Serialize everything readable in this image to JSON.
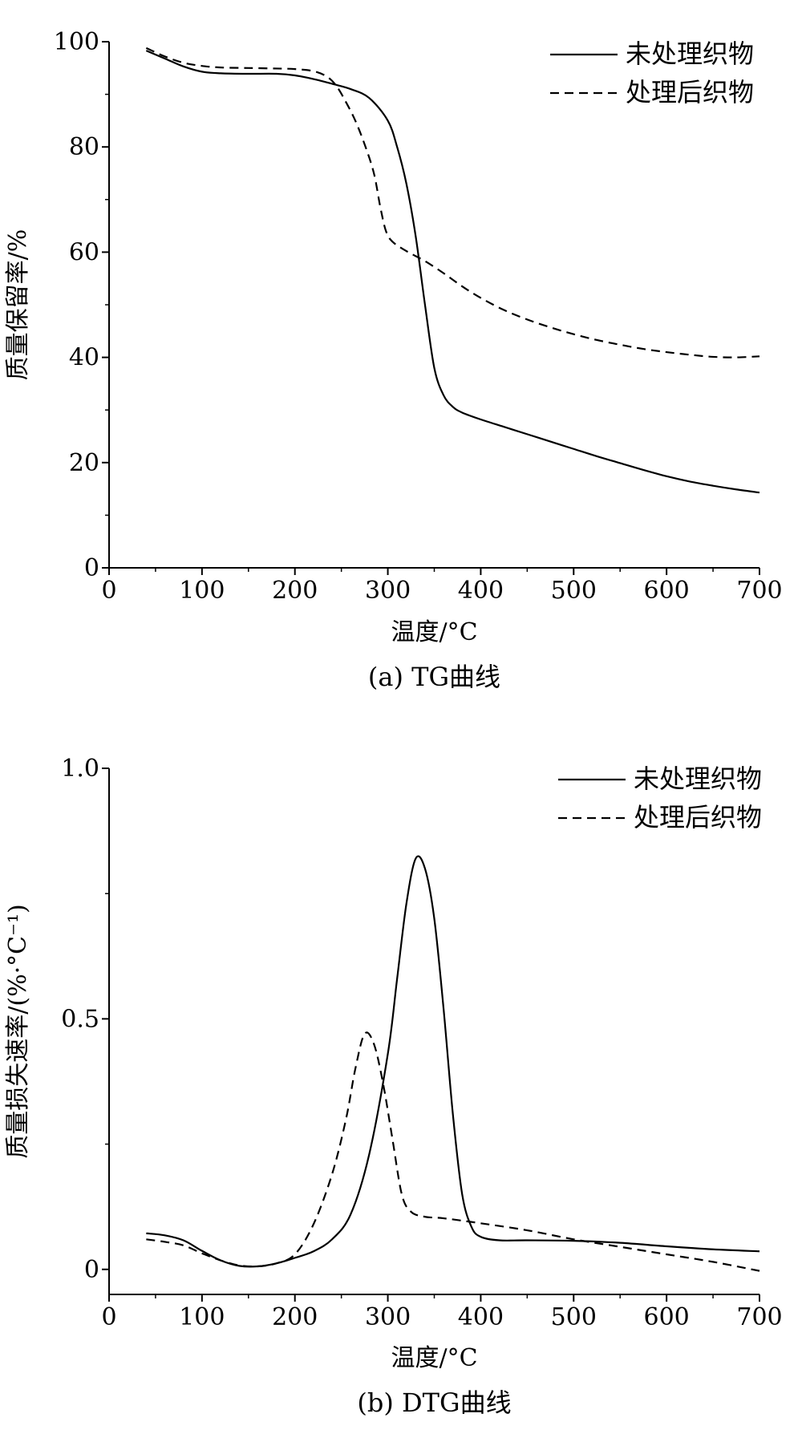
{
  "chart_data": [
    {
      "id": "tg",
      "type": "line",
      "caption": "(a) TG曲线",
      "xlabel": "温度/°C",
      "ylabel": "质量保留率/%",
      "xlim": [
        0,
        700
      ],
      "ylim": [
        0,
        100
      ],
      "xticks": [
        "0",
        "100",
        "200",
        "300",
        "400",
        "500",
        "600",
        "700"
      ],
      "yticks": [
        "0",
        "20",
        "40",
        "60",
        "80",
        "100"
      ],
      "legend_position": "top-right",
      "series": [
        {
          "name": "未处理织物",
          "style": "solid",
          "points": [
            [
              40,
              98.3
            ],
            [
              60,
              96.8
            ],
            [
              80,
              95.3
            ],
            [
              100,
              94.3
            ],
            [
              120,
              94.0
            ],
            [
              150,
              93.9
            ],
            [
              180,
              93.9
            ],
            [
              200,
              93.6
            ],
            [
              220,
              92.9
            ],
            [
              240,
              92.0
            ],
            [
              260,
              91.0
            ],
            [
              280,
              89.3
            ],
            [
              300,
              85.0
            ],
            [
              310,
              80.0
            ],
            [
              320,
              73.0
            ],
            [
              330,
              63.0
            ],
            [
              340,
              50.0
            ],
            [
              350,
              38.0
            ],
            [
              360,
              32.8
            ],
            [
              370,
              30.6
            ],
            [
              380,
              29.5
            ],
            [
              400,
              28.2
            ],
            [
              425,
              26.8
            ],
            [
              450,
              25.4
            ],
            [
              475,
              24.0
            ],
            [
              500,
              22.6
            ],
            [
              525,
              21.2
            ],
            [
              550,
              19.9
            ],
            [
              575,
              18.6
            ],
            [
              600,
              17.4
            ],
            [
              625,
              16.4
            ],
            [
              650,
              15.6
            ],
            [
              675,
              14.9
            ],
            [
              700,
              14.3
            ]
          ]
        },
        {
          "name": "处理后织物",
          "style": "dashed",
          "points": [
            [
              40,
              98.8
            ],
            [
              60,
              97.2
            ],
            [
              80,
              96.0
            ],
            [
              100,
              95.4
            ],
            [
              120,
              95.1
            ],
            [
              150,
              95.0
            ],
            [
              180,
              94.9
            ],
            [
              200,
              94.8
            ],
            [
              220,
              94.4
            ],
            [
              235,
              93.3
            ],
            [
              245,
              91.5
            ],
            [
              255,
              88.5
            ],
            [
              265,
              85.0
            ],
            [
              275,
              80.5
            ],
            [
              285,
              75.0
            ],
            [
              292,
              68.5
            ],
            [
              298,
              64.0
            ],
            [
              305,
              62.0
            ],
            [
              320,
              60.2
            ],
            [
              340,
              58.3
            ],
            [
              360,
              56.0
            ],
            [
              380,
              53.5
            ],
            [
              400,
              51.3
            ],
            [
              425,
              49.0
            ],
            [
              450,
              47.2
            ],
            [
              475,
              45.7
            ],
            [
              500,
              44.4
            ],
            [
              525,
              43.3
            ],
            [
              550,
              42.4
            ],
            [
              575,
              41.6
            ],
            [
              600,
              41.0
            ],
            [
              625,
              40.5
            ],
            [
              650,
              40.1
            ],
            [
              675,
              40.0
            ],
            [
              700,
              40.2
            ]
          ]
        }
      ]
    },
    {
      "id": "dtg",
      "type": "line",
      "caption": "(b) DTG曲线",
      "xlabel": "温度/°C",
      "ylabel": "质量损失速率/(%·°C⁻¹)",
      "xlim": [
        0,
        700
      ],
      "ylim": [
        -0.05,
        1.0
      ],
      "xticks": [
        "0",
        "100",
        "200",
        "300",
        "400",
        "500",
        "600",
        "700"
      ],
      "yticks": [
        "0",
        "0.5",
        "1.0"
      ],
      "legend_position": "top-right",
      "series": [
        {
          "name": "未处理织物",
          "style": "solid",
          "points": [
            [
              40,
              0.072
            ],
            [
              60,
              0.068
            ],
            [
              80,
              0.058
            ],
            [
              100,
              0.037
            ],
            [
              120,
              0.018
            ],
            [
              140,
              0.007
            ],
            [
              160,
              0.006
            ],
            [
              180,
              0.012
            ],
            [
              200,
              0.023
            ],
            [
              220,
              0.036
            ],
            [
              240,
              0.06
            ],
            [
              260,
              0.11
            ],
            [
              280,
              0.23
            ],
            [
              300,
              0.43
            ],
            [
              310,
              0.58
            ],
            [
              320,
              0.73
            ],
            [
              330,
              0.82
            ],
            [
              340,
              0.8
            ],
            [
              350,
              0.7
            ],
            [
              360,
              0.52
            ],
            [
              370,
              0.31
            ],
            [
              380,
              0.15
            ],
            [
              390,
              0.085
            ],
            [
              400,
              0.065
            ],
            [
              420,
              0.058
            ],
            [
              450,
              0.058
            ],
            [
              500,
              0.057
            ],
            [
              550,
              0.053
            ],
            [
              600,
              0.046
            ],
            [
              650,
              0.04
            ],
            [
              700,
              0.036
            ]
          ]
        },
        {
          "name": "处理后织物",
          "style": "dashed",
          "points": [
            [
              40,
              0.06
            ],
            [
              60,
              0.055
            ],
            [
              80,
              0.048
            ],
            [
              100,
              0.032
            ],
            [
              120,
              0.018
            ],
            [
              140,
              0.008
            ],
            [
              160,
              0.006
            ],
            [
              180,
              0.012
            ],
            [
              200,
              0.03
            ],
            [
              220,
              0.09
            ],
            [
              240,
              0.19
            ],
            [
              255,
              0.3
            ],
            [
              265,
              0.4
            ],
            [
              275,
              0.47
            ],
            [
              285,
              0.45
            ],
            [
              295,
              0.37
            ],
            [
              305,
              0.26
            ],
            [
              315,
              0.15
            ],
            [
              325,
              0.115
            ],
            [
              340,
              0.105
            ],
            [
              360,
              0.102
            ],
            [
              400,
              0.092
            ],
            [
              450,
              0.078
            ],
            [
              500,
              0.06
            ],
            [
              550,
              0.045
            ],
            [
              600,
              0.03
            ],
            [
              650,
              0.015
            ],
            [
              700,
              -0.003
            ]
          ]
        }
      ]
    }
  ]
}
